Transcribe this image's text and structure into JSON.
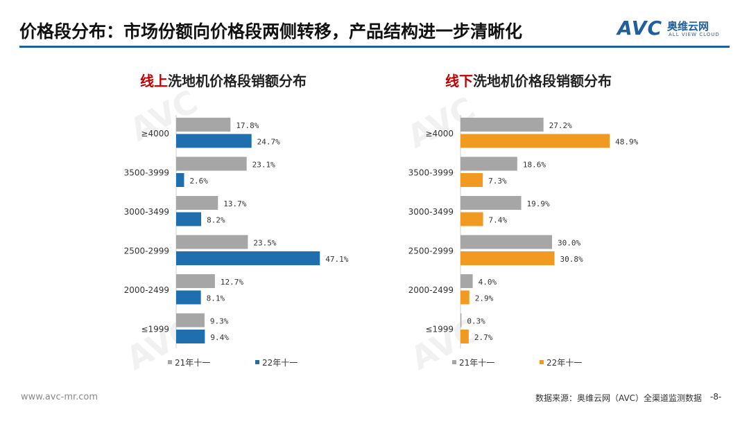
{
  "header": {
    "title": "价格段分布：市场份额向价格段两侧转移，产品结构进一步清晰化"
  },
  "logo": {
    "main": "AVC",
    "cn": "奥维云网",
    "en": "ALL VIEW CLOUD"
  },
  "colors": {
    "accent": "#1f5fa0",
    "grey_series": "#a6a6a6",
    "online_series": "#1f6fae",
    "offline_series": "#f09a22",
    "highlight_red": "#c00000"
  },
  "chart_data": [
    {
      "type": "bar",
      "orientation": "horizontal",
      "title_highlight": "线上",
      "title_rest": "洗地机价格段销额分布",
      "categories": [
        "≥4000",
        "3500-3999",
        "3000-3499",
        "2500-2999",
        "2000-2499",
        "≤1999"
      ],
      "series": [
        {
          "name": "21年十一",
          "values": [
            17.8,
            23.1,
            13.7,
            23.5,
            12.7,
            9.3
          ],
          "labels": [
            "17.8%",
            "23.1%",
            "13.7%",
            "23.5%",
            "12.7%",
            "9.3%"
          ]
        },
        {
          "name": "22年十一",
          "values": [
            24.7,
            2.6,
            8.2,
            47.1,
            8.1,
            9.4
          ],
          "labels": [
            "24.7%",
            "2.6%",
            "8.2%",
            "47.1%",
            "8.1%",
            "9.4%"
          ]
        }
      ],
      "unit": "%",
      "legend": "bottom",
      "xlim": [
        0,
        50
      ]
    },
    {
      "type": "bar",
      "orientation": "horizontal",
      "title_highlight": "线下",
      "title_rest": "洗地机价格段销额分布",
      "categories": [
        "≥4000",
        "3500-3999",
        "3000-3499",
        "2500-2999",
        "2000-2499",
        "≤1999"
      ],
      "series": [
        {
          "name": "21年十一",
          "values": [
            27.2,
            18.6,
            19.9,
            30.0,
            4.0,
            0.3
          ],
          "labels": [
            "27.2%",
            "18.6%",
            "19.9%",
            "30.0%",
            "4.0%",
            "0.3%"
          ]
        },
        {
          "name": "22年十一",
          "values": [
            48.9,
            7.3,
            7.4,
            30.8,
            2.9,
            2.7
          ],
          "labels": [
            "48.9%",
            "7.3%",
            "7.4%",
            "30.8%",
            "2.9%",
            "2.7%"
          ]
        }
      ],
      "unit": "%",
      "legend": "bottom",
      "xlim": [
        0,
        50
      ]
    }
  ],
  "footer": {
    "url": "www.avc-mr.com",
    "source": "数据来源：奥维云网（AVC）全渠道监测数据",
    "page": "-8-"
  }
}
